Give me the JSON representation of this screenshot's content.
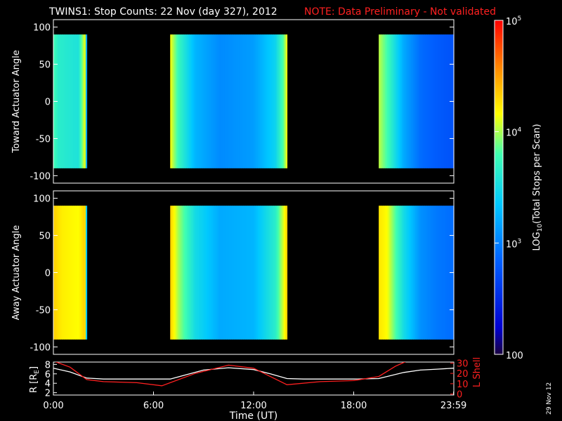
{
  "title": "TWINS1: Stop Counts: 22 Nov (day 327), 2012",
  "note": "NOTE: Data Preliminary - Not validated",
  "date_stamp": "29 Nov 12",
  "colors": {
    "background": "#000000",
    "axis": "#ffffff",
    "note": "#ff2020",
    "lshell": "#ff2020",
    "radius": "#ffffff"
  },
  "chart_data": [
    {
      "type": "heatmap",
      "ylabel": "Toward Actuator Angle",
      "ylim": [
        -110,
        110
      ],
      "yticks": [
        {
          "v": 100,
          "label": "100"
        },
        {
          "v": 50,
          "label": "50"
        },
        {
          "v": 0,
          "label": "0"
        },
        {
          "v": -50,
          "label": "-50"
        },
        {
          "v": -100,
          "label": "-100"
        }
      ],
      "angle_range": [
        -90,
        90
      ],
      "xlim_hours": [
        0,
        24
      ],
      "scan_intervals": [
        {
          "start": 0.0,
          "end": 2.0,
          "profile": [
            [
              0.0,
              0.6
            ],
            [
              0.3,
              0.55
            ],
            [
              1.5,
              0.52
            ],
            [
              1.9,
              0.72
            ],
            [
              2.0,
              0.25
            ]
          ]
        },
        {
          "start": 7.0,
          "end": 14.0,
          "profile": [
            [
              7.0,
              0.72
            ],
            [
              7.5,
              0.58
            ],
            [
              8.5,
              0.42
            ],
            [
              10.0,
              0.35
            ],
            [
              12.0,
              0.38
            ],
            [
              13.3,
              0.48
            ],
            [
              13.8,
              0.62
            ],
            [
              14.0,
              0.72
            ]
          ]
        },
        {
          "start": 19.5,
          "end": 24.0,
          "profile": [
            [
              19.5,
              0.68
            ],
            [
              20.0,
              0.6
            ],
            [
              21.0,
              0.4
            ],
            [
              22.0,
              0.3
            ],
            [
              23.0,
              0.27
            ],
            [
              24.0,
              0.25
            ]
          ]
        }
      ]
    },
    {
      "type": "heatmap",
      "ylabel": "Away Actuator Angle",
      "ylim": [
        -110,
        110
      ],
      "yticks": [
        {
          "v": 100,
          "label": "100"
        },
        {
          "v": 50,
          "label": "50"
        },
        {
          "v": 0,
          "label": "0"
        },
        {
          "v": -50,
          "label": "-50"
        },
        {
          "v": -100,
          "label": "-100"
        }
      ],
      "angle_range": [
        -90,
        90
      ],
      "xlim_hours": [
        0,
        24
      ],
      "scan_intervals": [
        {
          "start": 0.0,
          "end": 2.0,
          "profile": [
            [
              0.0,
              0.78
            ],
            [
              0.5,
              0.74
            ],
            [
              1.5,
              0.72
            ],
            [
              1.9,
              0.78
            ],
            [
              2.0,
              0.3
            ]
          ]
        },
        {
          "start": 7.0,
          "end": 14.0,
          "profile": [
            [
              7.0,
              0.78
            ],
            [
              7.5,
              0.66
            ],
            [
              8.5,
              0.5
            ],
            [
              10.0,
              0.4
            ],
            [
              12.0,
              0.42
            ],
            [
              13.3,
              0.55
            ],
            [
              13.8,
              0.7
            ],
            [
              14.0,
              0.78
            ]
          ]
        },
        {
          "start": 19.5,
          "end": 24.0,
          "profile": [
            [
              19.5,
              0.75
            ],
            [
              20.0,
              0.72
            ],
            [
              21.0,
              0.5
            ],
            [
              22.0,
              0.36
            ],
            [
              23.0,
              0.32
            ],
            [
              24.0,
              0.3
            ]
          ]
        }
      ]
    },
    {
      "type": "line",
      "xlabel": "Time (UT)",
      "xlim_hours": [
        0,
        24
      ],
      "xticks": [
        {
          "v": 0,
          "label": "0:00"
        },
        {
          "v": 6,
          "label": "6:00"
        },
        {
          "v": 12,
          "label": "12:00"
        },
        {
          "v": 18,
          "label": "18:00"
        },
        {
          "v": 23.983,
          "label": "23:59"
        }
      ],
      "left_axis": {
        "label": "R [R",
        "label_sub": "E",
        "label_end": "]",
        "ylim": [
          1.5,
          8.5
        ],
        "ticks": [
          {
            "v": 2,
            "label": "2"
          },
          {
            "v": 4,
            "label": "4"
          },
          {
            "v": 6,
            "label": "6"
          },
          {
            "v": 8,
            "label": "8"
          }
        ]
      },
      "right_axis": {
        "label": "L Shell",
        "ylim": [
          -1,
          31
        ],
        "ticks": [
          {
            "v": 0,
            "label": "0"
          },
          {
            "v": 10,
            "label": "10"
          },
          {
            "v": 20,
            "label": "20"
          },
          {
            "v": 30,
            "label": "30"
          }
        ]
      },
      "series": [
        {
          "name": "R",
          "axis": "left",
          "x": [
            0,
            1,
            2,
            3,
            5,
            7,
            9,
            10.5,
            12,
            13,
            14,
            15,
            18,
            19.5,
            21,
            22,
            23,
            24
          ],
          "y": [
            7.2,
            6.4,
            5.1,
            4.9,
            4.9,
            4.9,
            6.8,
            7.3,
            6.9,
            6.0,
            5.0,
            4.9,
            4.9,
            5.0,
            6.3,
            6.8,
            7.0,
            7.2
          ]
        },
        {
          "name": "L Shell",
          "axis": "right",
          "x": [
            0,
            1,
            2,
            3,
            5,
            6.5,
            8.5,
            10.5,
            12,
            13,
            14,
            16,
            18,
            19.5,
            20.5,
            21.2
          ],
          "y": [
            32,
            26,
            14,
            12,
            11,
            8,
            20,
            28,
            25,
            17,
            9,
            12,
            13,
            17,
            27,
            32
          ]
        }
      ]
    },
    {
      "type": "colorbar",
      "label": "LOG",
      "label_sub": "10",
      "label_end": "(Total Stops per Scan)",
      "scale": "log",
      "range": [
        100,
        100000
      ],
      "ticks": [
        {
          "v": 100000,
          "base": "10",
          "exp": "5"
        },
        {
          "v": 10000,
          "base": "10",
          "exp": "4"
        },
        {
          "v": 1000,
          "base": "10",
          "exp": "3"
        },
        {
          "v": 100,
          "base": "100",
          "exp": ""
        }
      ]
    }
  ]
}
